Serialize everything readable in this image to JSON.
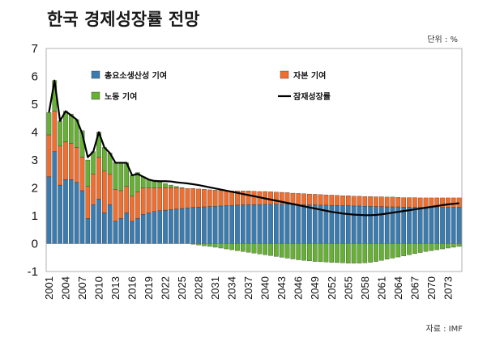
{
  "title": "한국 경제성장률 전망",
  "unit_label": "단위 : %",
  "source_label": "자료 : IMF",
  "chart_data": {
    "type": "bar",
    "stacked": true,
    "x": [
      2001,
      2002,
      2003,
      2004,
      2005,
      2006,
      2007,
      2008,
      2009,
      2010,
      2011,
      2012,
      2013,
      2014,
      2015,
      2016,
      2017,
      2018,
      2019,
      2020,
      2021,
      2022,
      2023,
      2024,
      2025,
      2026,
      2027,
      2028,
      2029,
      2030,
      2031,
      2032,
      2033,
      2034,
      2035,
      2036,
      2037,
      2038,
      2039,
      2040,
      2041,
      2042,
      2043,
      2044,
      2045,
      2046,
      2047,
      2048,
      2049,
      2050,
      2051,
      2052,
      2053,
      2054,
      2055,
      2056,
      2057,
      2058,
      2059,
      2060,
      2061,
      2062,
      2063,
      2064,
      2065,
      2066,
      2067,
      2068,
      2069,
      2070,
      2071,
      2072,
      2073,
      2074,
      2075
    ],
    "x_tick_labels": [
      "2001",
      "2004",
      "2007",
      "2010",
      "2013",
      "2016",
      "2019",
      "2022",
      "2025",
      "2028",
      "2031",
      "2034",
      "2037",
      "2040",
      "2043",
      "2046",
      "2049",
      "2052",
      "2055",
      "2058",
      "2061",
      "2064",
      "2067",
      "2070",
      "2073"
    ],
    "ylim": [
      -1,
      7
    ],
    "yticks": [
      -1,
      0,
      1,
      2,
      3,
      4,
      5,
      6,
      7
    ],
    "grid": false,
    "legend": "top",
    "colors": {
      "tfp": "#3a7bb0",
      "capital": "#f06e2e",
      "labor": "#66b034",
      "potential": "#000000"
    },
    "series": [
      {
        "name": "총요소생산성 기여",
        "key": "tfp",
        "kind": "bar",
        "values": [
          2.4,
          3.3,
          2.1,
          2.3,
          2.3,
          2.2,
          1.9,
          0.9,
          1.4,
          1.6,
          1.1,
          1.4,
          0.8,
          0.9,
          1.1,
          0.8,
          0.9,
          1.05,
          1.1,
          1.15,
          1.18,
          1.2,
          1.22,
          1.24,
          1.26,
          1.28,
          1.3,
          1.31,
          1.32,
          1.33,
          1.34,
          1.35,
          1.36,
          1.37,
          1.38,
          1.39,
          1.4,
          1.4,
          1.4,
          1.41,
          1.41,
          1.41,
          1.41,
          1.41,
          1.4,
          1.4,
          1.4,
          1.39,
          1.39,
          1.38,
          1.38,
          1.37,
          1.37,
          1.36,
          1.36,
          1.35,
          1.35,
          1.34,
          1.34,
          1.33,
          1.33,
          1.32,
          1.32,
          1.32,
          1.31,
          1.31,
          1.31,
          1.3,
          1.3,
          1.3,
          1.3,
          1.3,
          1.3,
          1.3,
          1.3
        ]
      },
      {
        "name": "자본 기여",
        "key": "capital",
        "kind": "bar",
        "values": [
          1.5,
          1.45,
          1.4,
          1.35,
          1.3,
          1.25,
          1.2,
          1.15,
          1.1,
          1.5,
          1.5,
          1.1,
          1.15,
          1.0,
          0.95,
          0.9,
          0.95,
          0.95,
          0.9,
          0.85,
          0.83,
          0.8,
          0.78,
          0.76,
          0.73,
          0.7,
          0.68,
          0.65,
          0.63,
          0.6,
          0.58,
          0.56,
          0.54,
          0.52,
          0.51,
          0.5,
          0.49,
          0.48,
          0.47,
          0.46,
          0.45,
          0.44,
          0.43,
          0.42,
          0.41,
          0.4,
          0.39,
          0.39,
          0.38,
          0.38,
          0.37,
          0.37,
          0.36,
          0.36,
          0.36,
          0.35,
          0.35,
          0.35,
          0.35,
          0.35,
          0.35,
          0.35,
          0.35,
          0.34,
          0.34,
          0.34,
          0.34,
          0.34,
          0.34,
          0.34,
          0.34,
          0.34,
          0.34,
          0.34,
          0.34
        ]
      },
      {
        "name": "노동 기여",
        "key": "labor",
        "kind": "bar",
        "values": [
          0.8,
          1.1,
          0.9,
          1.1,
          1.05,
          1.0,
          0.95,
          0.95,
          0.8,
          0.9,
          0.85,
          0.75,
          0.95,
          1.0,
          0.85,
          0.75,
          0.7,
          0.4,
          0.3,
          0.25,
          0.2,
          0.15,
          0.1,
          0.05,
          0.02,
          0.0,
          -0.02,
          -0.05,
          -0.08,
          -0.1,
          -0.13,
          -0.16,
          -0.19,
          -0.22,
          -0.25,
          -0.28,
          -0.31,
          -0.34,
          -0.37,
          -0.4,
          -0.43,
          -0.46,
          -0.49,
          -0.52,
          -0.55,
          -0.58,
          -0.6,
          -0.62,
          -0.64,
          -0.65,
          -0.66,
          -0.67,
          -0.68,
          -0.69,
          -0.7,
          -0.7,
          -0.7,
          -0.69,
          -0.67,
          -0.64,
          -0.6,
          -0.56,
          -0.52,
          -0.48,
          -0.44,
          -0.4,
          -0.36,
          -0.32,
          -0.28,
          -0.25,
          -0.22,
          -0.19,
          -0.16,
          -0.13,
          -0.1
        ]
      },
      {
        "name": "잠재성장률",
        "key": "potential",
        "kind": "line",
        "values": [
          4.7,
          5.85,
          4.4,
          4.75,
          4.6,
          4.45,
          3.95,
          3.1,
          3.3,
          4.0,
          3.45,
          3.25,
          2.9,
          2.9,
          2.9,
          2.45,
          2.5,
          2.4,
          2.3,
          2.25,
          2.24,
          2.24,
          2.23,
          2.2,
          2.18,
          2.16,
          2.13,
          2.1,
          2.06,
          2.02,
          1.98,
          1.94,
          1.9,
          1.86,
          1.82,
          1.78,
          1.74,
          1.7,
          1.66,
          1.62,
          1.58,
          1.54,
          1.5,
          1.46,
          1.42,
          1.38,
          1.34,
          1.3,
          1.26,
          1.22,
          1.18,
          1.14,
          1.11,
          1.08,
          1.06,
          1.04,
          1.03,
          1.02,
          1.02,
          1.03,
          1.05,
          1.08,
          1.11,
          1.14,
          1.17,
          1.2,
          1.23,
          1.26,
          1.29,
          1.32,
          1.35,
          1.38,
          1.41,
          1.43,
          1.45
        ]
      }
    ]
  }
}
